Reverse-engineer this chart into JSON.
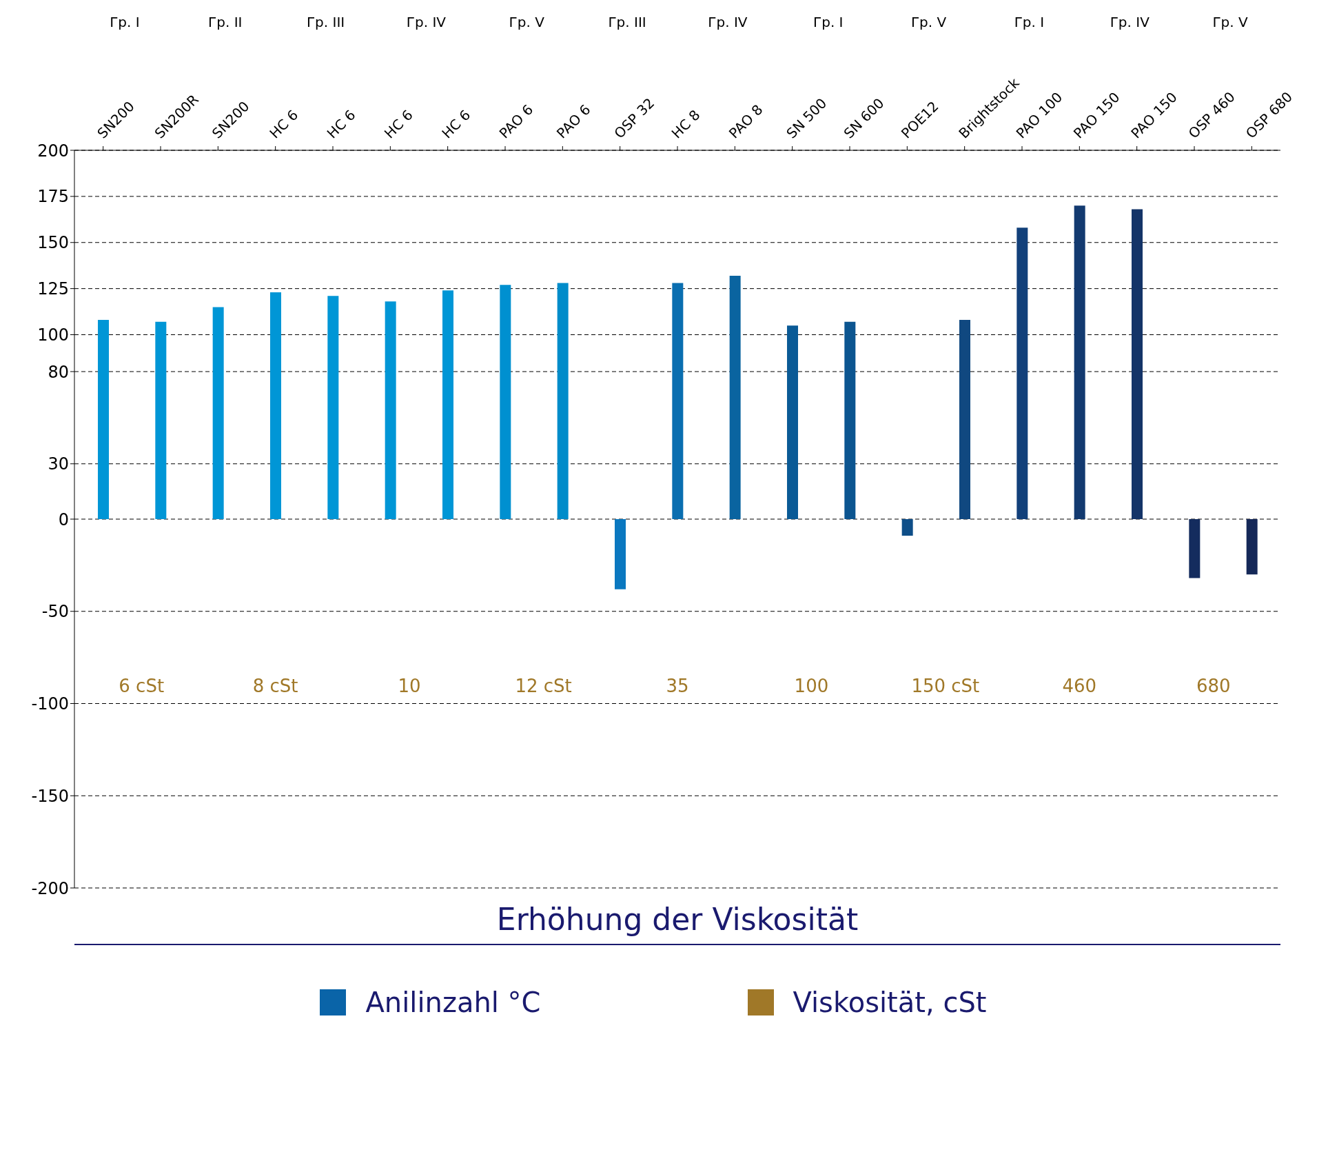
{
  "chart_data": {
    "type": "bar",
    "categories": [
      "SN200",
      "SN200R",
      "SN200",
      "HC 6",
      "HC 6",
      "HC 6",
      "HC 6",
      "PAO 6",
      "PAO 6",
      "OSP 32",
      "HC 8",
      "PAO 8",
      "SN 500",
      "SN 600",
      "POE12",
      "Brightstock",
      "PAO 100",
      "PAO 150",
      "PAO 150",
      "OSP 460",
      "OSP 680"
    ],
    "series": [
      {
        "name": "Anilinzahl °C",
        "color": "#0a64a8",
        "values": [
          108,
          107,
          115,
          123,
          121,
          118,
          124,
          127,
          128,
          -38,
          128,
          132,
          105,
          107,
          -9,
          108,
          158,
          170,
          168,
          -32,
          -30
        ],
        "colors": [
          "#0096d6",
          "#0096d6",
          "#0096d6",
          "#0096d6",
          "#0096d6",
          "#0096d6",
          "#0096d6",
          "#0090d0",
          "#008cca",
          "#0a78c0",
          "#0a6eb0",
          "#0a64a0",
          "#0a5a96",
          "#0c5590",
          "#0e4e88",
          "#104880",
          "#12407a",
          "#133a70",
          "#143468",
          "#142c5e",
          "#152858"
        ]
      },
      {
        "name": "Viskosität, cSt",
        "color": "#a07828",
        "values": [
          null,
          null,
          null,
          null,
          null,
          null,
          null,
          null,
          null,
          null,
          null,
          null,
          null,
          null,
          null,
          null,
          null,
          null,
          null,
          null,
          null
        ]
      }
    ],
    "ylim": [
      -200,
      200
    ],
    "yticks": [
      -200,
      -150,
      -100,
      -50,
      0,
      30,
      80,
      100,
      125,
      150,
      175,
      200
    ],
    "grid": "y",
    "line_style": "dashed",
    "legend": "bottom",
    "xlabel": "Erhöhung der Viskosität",
    "annotations": [
      "Гр. I",
      "Гр. II",
      "Гр. III",
      "Гр. IV",
      "Гр. V",
      "Гр. III",
      "Гр. IV",
      "Гр. I",
      "Гр. V",
      "Гр. I",
      "Гр. IV",
      "Гр. V",
      "6 cSt",
      "8 cSt",
      "10",
      "12 cSt",
      "35",
      "100",
      "150 cSt",
      "460",
      "680"
    ]
  }
}
